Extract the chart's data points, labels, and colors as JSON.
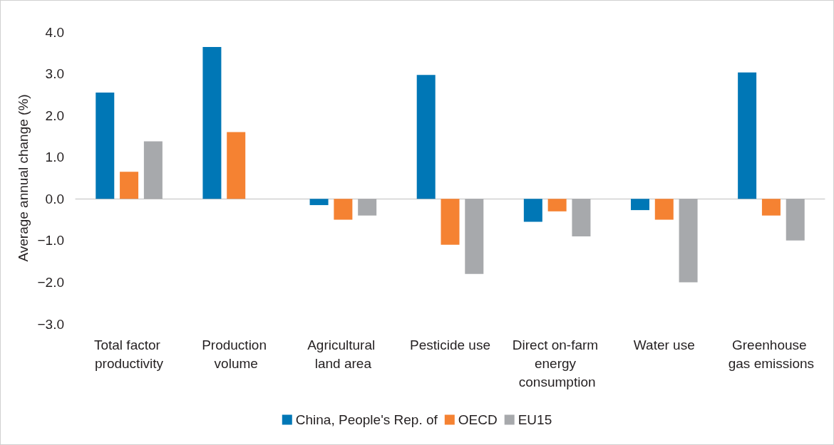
{
  "chart_data": {
    "type": "bar",
    "ylabel": "Average annual change (%)",
    "categories": [
      "Total factor productivity",
      "Production volume",
      "Agricultural land area",
      "Pesticide use",
      "Direct on-farm energy consumption",
      "Water use",
      "Greenhouse gas emissions"
    ],
    "series": [
      {
        "name": "China, People's Rep. of",
        "color": "#0077b6",
        "values": [
          2.55,
          3.64,
          -0.15,
          2.97,
          -0.55,
          -0.27,
          3.03
        ]
      },
      {
        "name": "OECD",
        "color": "#f58232",
        "values": [
          0.65,
          1.6,
          -0.5,
          -1.1,
          -0.3,
          -0.5,
          -0.4
        ]
      },
      {
        "name": "EU15",
        "color": "#a7a9ac",
        "values": [
          1.38,
          null,
          -0.4,
          -1.8,
          -0.9,
          -2.0,
          -1.0
        ]
      }
    ],
    "ylim": [
      -3,
      4
    ],
    "yticks": [
      {
        "value": -3,
        "label": "−3.0"
      },
      {
        "value": -2,
        "label": "−2.0"
      },
      {
        "value": -1,
        "label": "−1.0"
      },
      {
        "value": 0,
        "label": "0.0"
      },
      {
        "value": 1,
        "label": "1.0"
      },
      {
        "value": 2,
        "label": "2.0"
      },
      {
        "value": 3,
        "label": "3.0"
      },
      {
        "value": 4,
        "label": "4.0"
      }
    ],
    "legend": "bottom"
  }
}
